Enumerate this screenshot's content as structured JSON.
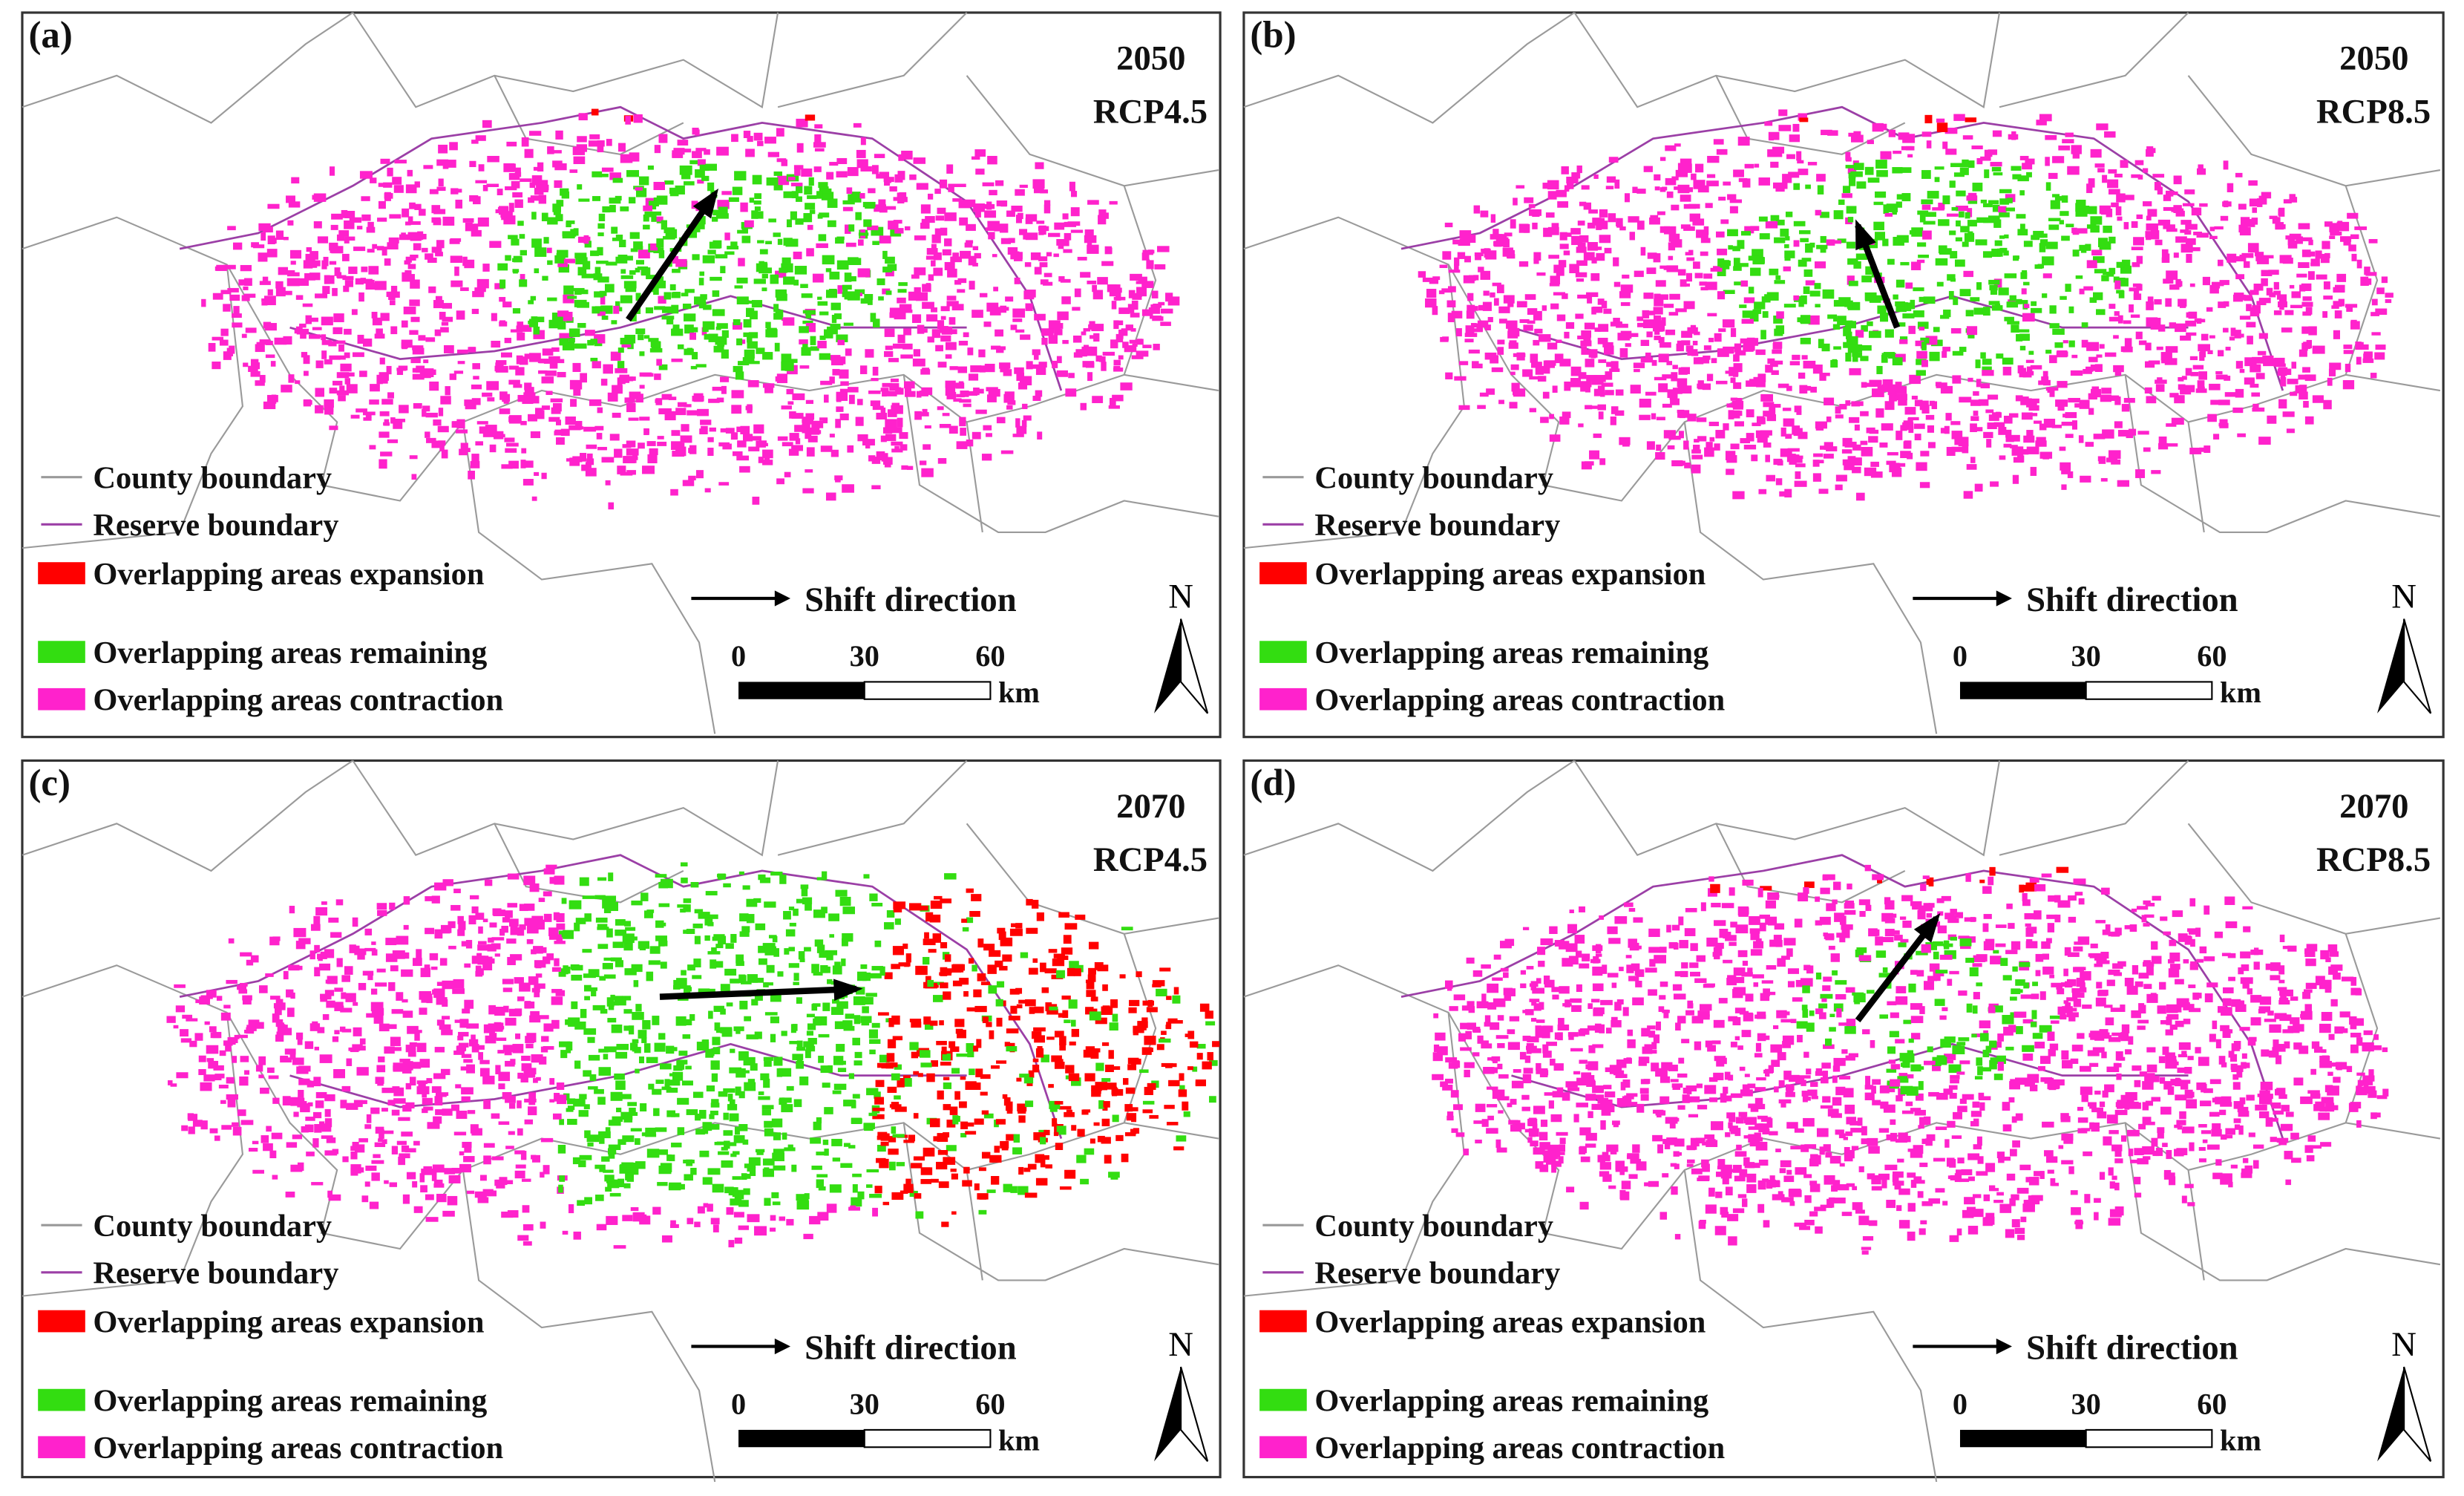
{
  "panels": [
    {
      "label": "(a)",
      "year": "2050",
      "scenario": "RCP4.5",
      "legend": [
        {
          "text": "County boundary",
          "color": "#999999"
        },
        {
          "text": "Reserve boundary",
          "color": "#9b3fa6"
        },
        {
          "text": "Overlapping areas expansion",
          "color": "#ff0000"
        },
        {
          "text": "Overlapping areas remaining",
          "color": "#33dd11"
        },
        {
          "text": "Overlapping areas contraction",
          "color": "#ff22cc"
        }
      ],
      "shift": "Shift direction",
      "scale": {
        "ticks": [
          0,
          30,
          60
        ],
        "unit": "km"
      },
      "north": "N"
    },
    {
      "label": "(b)",
      "year": "2050",
      "scenario": "RCP8.5",
      "legend": [
        {
          "text": "County boundary",
          "color": "#999999"
        },
        {
          "text": "Reserve boundary",
          "color": "#9b3fa6"
        },
        {
          "text": "Overlapping areas expansion",
          "color": "#ff0000"
        },
        {
          "text": "Overlapping areas remaining",
          "color": "#33dd11"
        },
        {
          "text": "Overlapping areas contraction",
          "color": "#ff22cc"
        }
      ],
      "shift": "Shift direction",
      "scale": {
        "ticks": [
          0,
          30,
          60
        ],
        "unit": "km"
      },
      "north": "N"
    },
    {
      "label": "(c)",
      "year": "2070",
      "scenario": "RCP4.5",
      "legend": [
        {
          "text": "County boundary",
          "color": "#999999"
        },
        {
          "text": "Reserve boundary",
          "color": "#9b3fa6"
        },
        {
          "text": "Overlapping areas expansion",
          "color": "#ff0000"
        },
        {
          "text": "Overlapping areas remaining",
          "color": "#33dd11"
        },
        {
          "text": "Overlapping areas contraction",
          "color": "#ff22cc"
        }
      ],
      "shift": "Shift direction",
      "scale": {
        "ticks": [
          0,
          30,
          60
        ],
        "unit": "km"
      },
      "north": "N"
    },
    {
      "label": "(d)",
      "year": "2070",
      "scenario": "RCP8.5",
      "legend": [
        {
          "text": "County boundary",
          "color": "#999999"
        },
        {
          "text": "Reserve boundary",
          "color": "#9b3fa6"
        },
        {
          "text": "Overlapping areas expansion",
          "color": "#ff0000"
        },
        {
          "text": "Overlapping areas remaining",
          "color": "#33dd11"
        },
        {
          "text": "Overlapping areas contraction",
          "color": "#ff22cc"
        }
      ],
      "shift": "Shift direction",
      "scale": {
        "ticks": [
          0,
          30,
          60
        ],
        "unit": "km"
      },
      "north": "N"
    }
  ]
}
